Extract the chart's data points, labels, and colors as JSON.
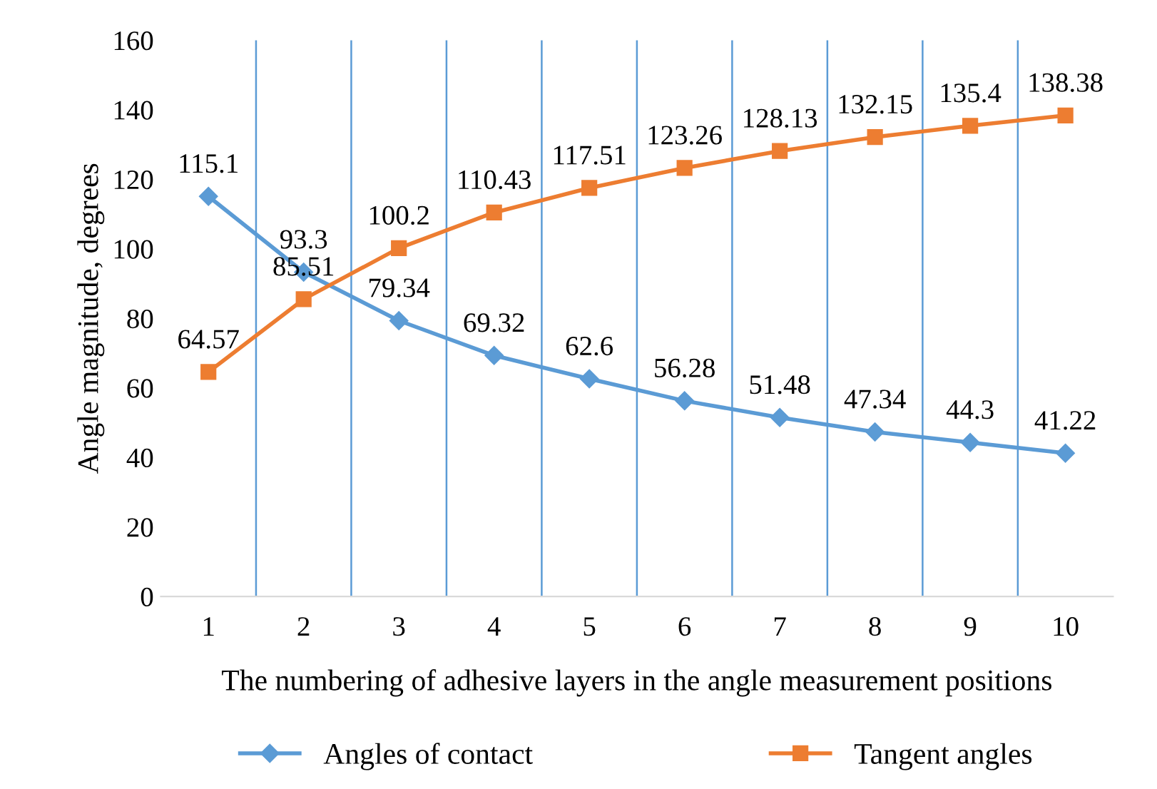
{
  "chart_data": {
    "type": "line",
    "xlabel": "The numbering of adhesive layers in the angle measurement positions",
    "ylabel": "Angle magnitude, degrees",
    "categories": [
      "1",
      "2",
      "3",
      "4",
      "5",
      "6",
      "7",
      "8",
      "9",
      "10"
    ],
    "series": [
      {
        "name": "Angles of contact",
        "color": "#5b9bd5",
        "marker": "diamond",
        "values": [
          115.1,
          93.3,
          79.34,
          69.32,
          62.6,
          56.28,
          51.48,
          47.34,
          44.3,
          41.22
        ]
      },
      {
        "name": "Tangent angles",
        "color": "#ed7d31",
        "marker": "square",
        "values": [
          64.57,
          85.51,
          100.2,
          110.43,
          117.51,
          123.26,
          128.13,
          132.15,
          135.4,
          138.38
        ]
      }
    ],
    "ylim": [
      0,
      160
    ],
    "yticks": [
      0,
      20,
      40,
      60,
      80,
      100,
      120,
      140,
      160
    ],
    "grid": "x",
    "legend": "bottom",
    "data_labels": true,
    "line_style": "solid"
  }
}
